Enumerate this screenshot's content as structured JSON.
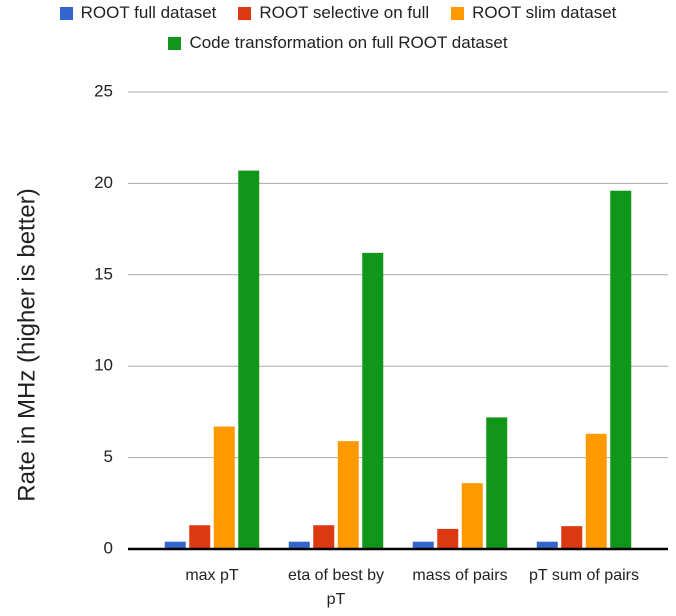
{
  "chart_data": {
    "type": "bar",
    "ylabel": "Rate in MHz (higher is better)",
    "categories": [
      "max pT",
      "eta of best by pT",
      "mass of pairs",
      "pT sum of pairs"
    ],
    "series": [
      {
        "name": "ROOT full dataset",
        "color": "#3366cc",
        "values": [
          0.4,
          0.4,
          0.4,
          0.4
        ]
      },
      {
        "name": "ROOT selective on full",
        "color": "#dc3912",
        "values": [
          1.3,
          1.3,
          1.1,
          1.25
        ]
      },
      {
        "name": "ROOT slim dataset",
        "color": "#ff9900",
        "values": [
          6.7,
          5.9,
          3.6,
          6.3
        ]
      },
      {
        "name": "Code transformation on full ROOT dataset",
        "color": "#109618",
        "values": [
          20.7,
          16.2,
          7.2,
          19.6
        ]
      }
    ],
    "ylim": [
      0,
      25
    ],
    "yticks": [
      0,
      5,
      10,
      15,
      20,
      25
    ],
    "grid": true
  }
}
